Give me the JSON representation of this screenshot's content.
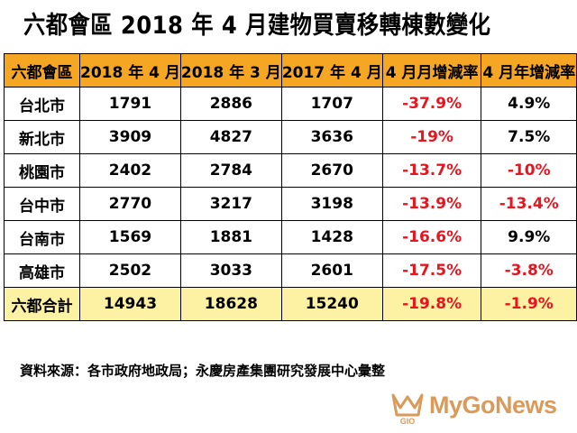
{
  "title": "六都會區 2018 年 4 月建物買賣移轉棟數變化",
  "table": {
    "headers": [
      "六都會區",
      "2018 年 4 月",
      "2018 年 3 月",
      "2017 年 4 月",
      "4 月月增減率",
      "4 月年增減率"
    ],
    "rows": [
      {
        "city": "台北市",
        "apr2018": "1791",
        "mar2018": "2886",
        "apr2017": "1707",
        "mom": "-37.9%",
        "yoy": "4.9%"
      },
      {
        "city": "新北市",
        "apr2018": "3909",
        "mar2018": "4827",
        "apr2017": "3636",
        "mom": "-19%",
        "yoy": "7.5%"
      },
      {
        "city": "桃園市",
        "apr2018": "2402",
        "mar2018": "2784",
        "apr2017": "2670",
        "mom": "-13.7%",
        "yoy": "-10%"
      },
      {
        "city": "台中市",
        "apr2018": "2770",
        "mar2018": "3217",
        "apr2017": "3198",
        "mom": "-13.9%",
        "yoy": "-13.4%"
      },
      {
        "city": "台南市",
        "apr2018": "1569",
        "mar2018": "1881",
        "apr2017": "1428",
        "mom": "-16.6%",
        "yoy": "9.9%"
      },
      {
        "city": "高雄市",
        "apr2018": "2502",
        "mar2018": "3033",
        "apr2017": "2601",
        "mom": "-17.5%",
        "yoy": "-3.8%"
      }
    ],
    "total": {
      "city": "六都合計",
      "apr2018": "14943",
      "mar2018": "18628",
      "apr2017": "15240",
      "mom": "-19.8%",
      "yoy": "-1.9%"
    }
  },
  "source": "資料來源：各市政府地政局；永慶房產集團研究發展中心彙整",
  "watermark": {
    "brand": "MyGoNews",
    "logo_text": "GIO",
    "color": "#d99a5a"
  },
  "colors": {
    "header_bg": "#f5a623",
    "total_bg": "#fdf2a3",
    "negative": "#e8141e"
  }
}
